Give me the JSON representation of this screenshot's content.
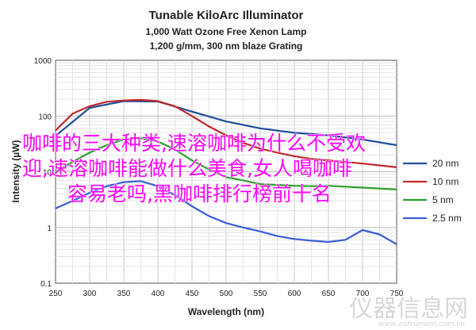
{
  "chart_data": {
    "type": "line",
    "title": "Tunable KiloArc Illuminator",
    "subtitle_1": "1,000 Watt Ozone Free Xenon Lamp",
    "subtitle_2": "1,200 g/mm, 300 nm blaze Grating",
    "xlabel": "Wavelength (nm)",
    "ylabel": "Intensity (µW)",
    "xlim": [
      250,
      750
    ],
    "ylim": [
      0.1,
      1000
    ],
    "yscale": "log",
    "xticks": [
      250,
      300,
      350,
      400,
      450,
      500,
      550,
      600,
      650,
      700,
      750
    ],
    "yticks": [
      0.1,
      1,
      10,
      100,
      1000
    ],
    "ytick_labels": [
      "0.1",
      "1",
      "10",
      "100",
      "1000"
    ],
    "grid": true,
    "legend_position": "right",
    "series": [
      {
        "name": "20 nm",
        "color": "#1f4e9a",
        "x": [
          250,
          300,
          350,
          400,
          450,
          500,
          550,
          600,
          650,
          700,
          750
        ],
        "y": [
          44,
          140,
          185,
          182,
          120,
          80,
          60,
          50,
          45,
          38,
          30
        ]
      },
      {
        "name": "10 nm",
        "color": "#c0282c",
        "x": [
          250,
          275,
          300,
          325,
          350,
          375,
          400,
          425,
          450,
          475,
          500,
          525,
          550,
          575,
          600,
          625,
          650,
          675,
          700,
          725,
          750
        ],
        "y": [
          55,
          110,
          150,
          180,
          190,
          195,
          185,
          150,
          100,
          65,
          45,
          33,
          26,
          22,
          19,
          17,
          16,
          15,
          14,
          13,
          12
        ]
      },
      {
        "name": "5 nm",
        "color": "#2ca02c",
        "x": [
          250,
          275,
          300,
          325,
          350,
          375,
          400,
          425,
          450,
          475,
          500,
          525,
          550,
          575,
          600,
          625,
          650,
          675,
          700,
          725,
          750
        ],
        "y": [
          10,
          15,
          22,
          30,
          38,
          40,
          35,
          25,
          16,
          11,
          8,
          7,
          6,
          5.8,
          5.6,
          5.5,
          5.6,
          5.4,
          5.2,
          5.0,
          4.8
        ]
      },
      {
        "name": "2.5 nm",
        "color": "#3b5ed6",
        "x": [
          250,
          275,
          300,
          325,
          350,
          375,
          400,
          425,
          450,
          475,
          500,
          525,
          550,
          575,
          600,
          625,
          650,
          675,
          700,
          725,
          750
        ],
        "y": [
          2.2,
          3,
          4.2,
          5.5,
          6.5,
          6.8,
          5.5,
          3.8,
          2.4,
          1.6,
          1.2,
          1.0,
          0.85,
          0.7,
          0.62,
          0.58,
          0.55,
          0.6,
          0.9,
          0.75,
          0.5
        ]
      }
    ]
  },
  "overlay": {
    "line1": "咖啡的三大种类,速溶咖啡为什么不受欢",
    "line2": "迎,速溶咖啡能做什么美食,女人喝咖啡",
    "line3": "容易老吗,黑咖啡排行榜前十名",
    "color": "#ff00ff"
  },
  "watermark": {
    "text": "仪器信息网",
    "url": "www.instrument.com.cn"
  }
}
